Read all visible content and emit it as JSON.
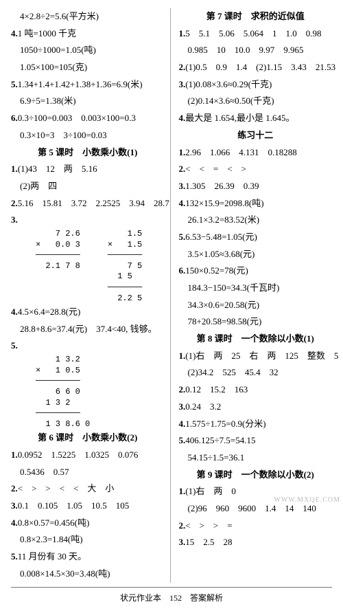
{
  "left": {
    "l1": "　4×2.8÷2=5.6(平方米)",
    "l2_b": "4.",
    "l2": "1 吨=1000 千克",
    "l3": "　1050÷1000=1.05(吨)",
    "l4": "　1.05×100=105(克)",
    "l5_b": "5.",
    "l5": "1.34+1.4+1.42+1.38+1.36=6.9(米)",
    "l6": "　6.9÷5=1.38(米)",
    "l7_b": "6.",
    "l7": "0.3÷100=0.003　0.003×100=0.3",
    "l8": "　0.3×10=3　3÷100=0.03",
    "h1": "第 5 课时　小数乘小数(1)",
    "l9_b": "1.",
    "l9": "(1)43　12　两　5.16",
    "l10": "　(2)两　四",
    "l11_b": "2.",
    "l11": "5.16　15.81　3.72　2.2525　3.94　28.7",
    "l12_b": "3.",
    "mult1a": "    7 2.6\n×   0.0 3\n─────────\n  2.1 7 8",
    "mult1b": "    1.5\n×   1.5\n───────\n    7 5\n  1 5\n───────\n  2.2 5",
    "l13_b": "4.",
    "l13": "4.5×6.4=28.8(元)",
    "l14": "　28.8+8.6=37.4(元)　37.4<40, 钱够。",
    "l15_b": "5.",
    "mult2": "    1 3.2\n×   1 0.5\n─────────\n    6 6 0\n  1 3 2\n─────────\n  1 3 8.6 0",
    "h2": "第 6 课时　小数乘小数(2)",
    "l16_b": "1.",
    "l16": "0.0952　1.5225　1.0325　0.076",
    "l17": "　0.5436　0.57",
    "l18_b": "2.",
    "l18": "<　>　>　<　<　大　小",
    "l19_b": "3.",
    "l19": "0.1　0.105　1.05　10.5　105",
    "l20_b": "4.",
    "l20": "0.8×0.57=0.456(吨)",
    "l21": "　0.8×2.3=1.84(吨)",
    "l22_b": "5.",
    "l22": "11 月份有 30 天。",
    "l23": "　0.008×14.5×30=3.48(吨)"
  },
  "right": {
    "h1": "第 7 课时　求积的近似值",
    "r1_b": "1.",
    "r1": "5　5.1　5.06　5.064　1　1.0　0.98",
    "r2": "　0.985　10　10.0　9.97　9.965",
    "r3_b": "2.",
    "r3": "(1)0.5　0.9　1.4　(2)1.15　3.43　21.53",
    "r4_b": "3.",
    "r4": "(1)0.08×3.6≈0.29(千克)",
    "r5": "　(2)0.14×3.6≈0.50(千克)",
    "r6_b": "4.",
    "r6": "最大是 1.654,最小是 1.645。",
    "h2": "练习十二",
    "r7_b": "1.",
    "r7": "2.96　1.066　4.131　0.18288",
    "r8_b": "2.",
    "r8": "<　<　=　<　>",
    "r9_b": "3.",
    "r9": "1.305　26.39　0.39",
    "r10_b": "4.",
    "r10": "132×15.9=2098.8(吨)",
    "r11": "　26.1×3.2=83.52(米)",
    "r12_b": "5.",
    "r12": "6.53−5.48=1.05(元)",
    "r13": "　3.5×1.05≈3.68(元)",
    "r14_b": "6.",
    "r14": "150×0.52=78(元)",
    "r15": "　184.3−150=34.3(千瓦时)",
    "r16": "　34.3×0.6=20.58(元)",
    "r17": "　78+20.58=98.58(元)",
    "h3": "第 8 课时　一个数除以小数(1)",
    "r18_b": "1.",
    "r18": "(1)右　两　25　右　两　125　整数　5",
    "r19": "　(2)34.2　525　45.4　32",
    "r20_b": "2.",
    "r20": "0.12　15.2　163",
    "r21_b": "3.",
    "r21": "0.24　3.2",
    "r22_b": "4.",
    "r22": "1.575÷1.75=0.9(分米)",
    "r23_b": "5.",
    "r23": "406.125÷7.5=54.15",
    "r24": "　54.15÷1.5=36.1",
    "h4": "第 9 课时　一个数除以小数(2)",
    "r25_b": "1.",
    "r25": "(1)右　两　0",
    "r26": "　(2)96　960　9600　1.4　14　140",
    "r27_b": "2.",
    "r27": "<　>　>　=",
    "r28_b": "3.",
    "r28": "15　2.5　28"
  },
  "footer": "状元作业本　152　答案解析",
  "watermark": "WWW.MXQE.COM"
}
